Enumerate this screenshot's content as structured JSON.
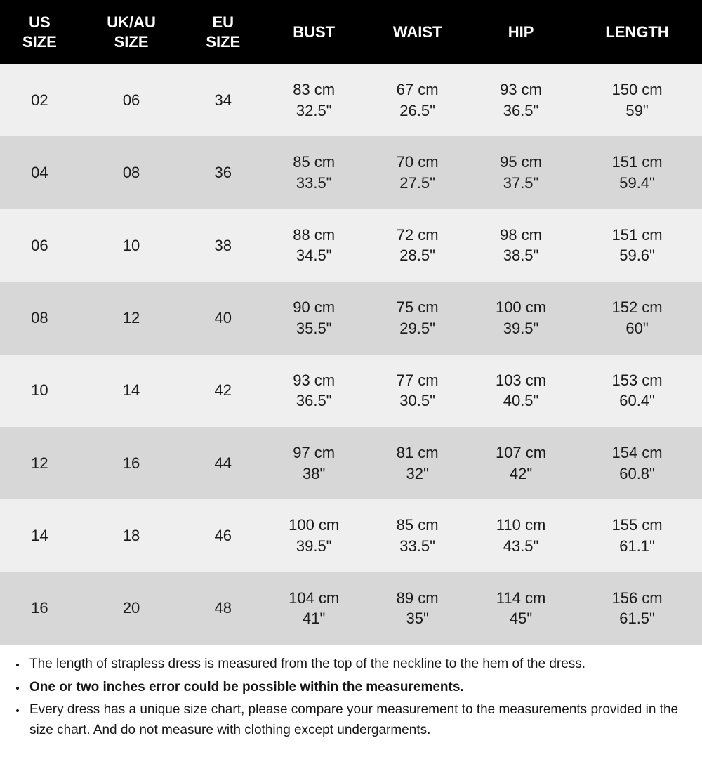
{
  "table": {
    "columns": [
      {
        "label": "US\nSIZE",
        "type": "single"
      },
      {
        "label": "UK/AU\nSIZE",
        "type": "single"
      },
      {
        "label": "EU\nSIZE",
        "type": "single"
      },
      {
        "label": "BUST",
        "type": "double"
      },
      {
        "label": "WAIST",
        "type": "double"
      },
      {
        "label": "HIP",
        "type": "double"
      },
      {
        "label": "LENGTH",
        "type": "double"
      }
    ],
    "rows": [
      {
        "bg": "light",
        "cells": [
          "02",
          "06",
          "34",
          {
            "cm": "83 cm",
            "in": "32.5\""
          },
          {
            "cm": "67 cm",
            "in": "26.5\""
          },
          {
            "cm": "93 cm",
            "in": "36.5\""
          },
          {
            "cm": "150 cm",
            "in": "59\""
          }
        ]
      },
      {
        "bg": "dark",
        "cells": [
          "04",
          "08",
          "36",
          {
            "cm": "85 cm",
            "in": "33.5\""
          },
          {
            "cm": "70 cm",
            "in": "27.5\""
          },
          {
            "cm": "95 cm",
            "in": "37.5\""
          },
          {
            "cm": "151 cm",
            "in": "59.4\""
          }
        ]
      },
      {
        "bg": "light",
        "cells": [
          "06",
          "10",
          "38",
          {
            "cm": "88 cm",
            "in": "34.5\""
          },
          {
            "cm": "72 cm",
            "in": "28.5\""
          },
          {
            "cm": "98 cm",
            "in": "38.5\""
          },
          {
            "cm": "151 cm",
            "in": "59.6\""
          }
        ]
      },
      {
        "bg": "dark",
        "cells": [
          "08",
          "12",
          "40",
          {
            "cm": "90 cm",
            "in": "35.5\""
          },
          {
            "cm": "75 cm",
            "in": "29.5\""
          },
          {
            "cm": "100 cm",
            "in": "39.5\""
          },
          {
            "cm": "152 cm",
            "in": "60\""
          }
        ]
      },
      {
        "bg": "light",
        "cells": [
          "10",
          "14",
          "42",
          {
            "cm": "93 cm",
            "in": "36.5\""
          },
          {
            "cm": "77 cm",
            "in": "30.5\""
          },
          {
            "cm": "103 cm",
            "in": "40.5\""
          },
          {
            "cm": "153 cm",
            "in": "60.4\""
          }
        ]
      },
      {
        "bg": "dark",
        "cells": [
          "12",
          "16",
          "44",
          {
            "cm": "97 cm",
            "in": "38\""
          },
          {
            "cm": "81 cm",
            "in": "32\""
          },
          {
            "cm": "107 cm",
            "in": "42\""
          },
          {
            "cm": "154 cm",
            "in": "60.8\""
          }
        ]
      },
      {
        "bg": "light",
        "cells": [
          "14",
          "18",
          "46",
          {
            "cm": "100 cm",
            "in": "39.5\""
          },
          {
            "cm": "85 cm",
            "in": "33.5\""
          },
          {
            "cm": "110 cm",
            "in": "43.5\""
          },
          {
            "cm": "155 cm",
            "in": "61.1\""
          }
        ]
      },
      {
        "bg": "dark",
        "cells": [
          "16",
          "20",
          "48",
          {
            "cm": "104 cm",
            "in": "41\""
          },
          {
            "cm": "89 cm",
            "in": "35\""
          },
          {
            "cm": "114 cm",
            "in": "45\""
          },
          {
            "cm": "156 cm",
            "in": "61.5\""
          }
        ]
      }
    ],
    "header_bg": "#000000",
    "header_color": "#ffffff",
    "row_bg_light": "#efefef",
    "row_bg_dark": "#d7d7d7",
    "text_color": "#1a1a1a",
    "header_fontsize": 22,
    "cell_fontsize": 22
  },
  "notes": {
    "items": [
      {
        "text": "The length of strapless dress is measured from the top of the neckline to the hem of the dress.",
        "bold": false
      },
      {
        "text": "One or two inches error could be possible within the measurements.",
        "bold": true
      },
      {
        "text": "Every dress has a unique size chart, please compare your measurement to the measurements provided in the size chart. And do not measure with clothing except undergarments.",
        "bold": false
      }
    ],
    "fontsize": 19,
    "text_color": "#161616"
  }
}
